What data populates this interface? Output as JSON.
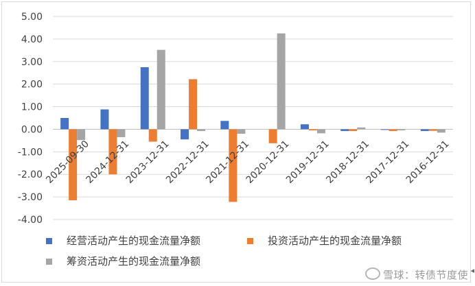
{
  "chart_data": {
    "type": "bar",
    "categories": [
      "2025-09-30",
      "2024-12-31",
      "2023-12-31",
      "2022-12-31",
      "2021-12-31",
      "2020-12-31",
      "2019-12-31",
      "2018-12-31",
      "2017-12-31",
      "2016-12-31"
    ],
    "series": [
      {
        "name": "经营活动产生的现金流量净额",
        "color": "#4472C4",
        "values": [
          0.5,
          0.88,
          2.75,
          -0.45,
          0.37,
          0.0,
          0.22,
          -0.08,
          -0.03,
          -0.08
        ]
      },
      {
        "name": "投资活动产生的现金流量净额",
        "color": "#ED7D31",
        "values": [
          -3.15,
          -2.0,
          -0.55,
          2.22,
          -3.22,
          -0.62,
          -0.05,
          -0.08,
          -0.08,
          -0.07
        ]
      },
      {
        "name": "筹资活动产生的现金流量净额",
        "color": "#A5A5A5",
        "values": [
          -0.48,
          -0.35,
          3.52,
          -0.08,
          -0.2,
          4.25,
          -0.18,
          0.08,
          -0.05,
          -0.15
        ]
      }
    ],
    "ylim": [
      -4.0,
      5.0
    ],
    "yticks": [
      "5.00",
      "4.00",
      "3.00",
      "2.00",
      "1.00",
      "0.00",
      "-1.00",
      "-2.00",
      "-3.00",
      "-4.00"
    ],
    "grid": true,
    "legend_position": "bottom",
    "title": "",
    "xlabel": "",
    "ylabel": ""
  },
  "watermark": "雪球：转债节度使"
}
